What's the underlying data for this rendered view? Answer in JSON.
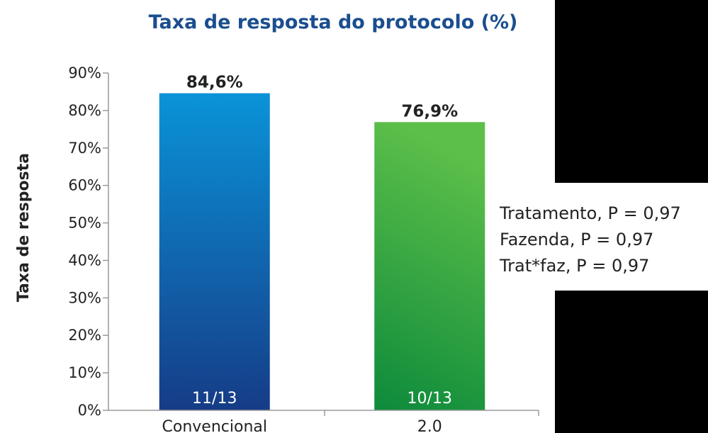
{
  "chart_data": {
    "type": "bar",
    "title": "Taxa de resposta do protocolo (%)",
    "ylabel": "Taxa de resposta",
    "xlabel": "",
    "ylim": [
      0,
      90
    ],
    "yticks": [
      "0%",
      "10%",
      "20%",
      "30%",
      "40%",
      "50%",
      "60%",
      "70%",
      "80%",
      "90%"
    ],
    "categories": [
      "Convencional",
      "2.0"
    ],
    "values": [
      84.6,
      76.9
    ],
    "value_labels": [
      "84,6%",
      "76,9%"
    ],
    "bar_inner_labels": [
      "11/13",
      "10/13"
    ],
    "colors": [
      "#1976c9",
      "#3aa845"
    ],
    "grid": false
  },
  "stats": [
    "Tratamento, P = 0,97",
    "Fazenda, P = 0,97",
    "Trat*faz, P = 0,97"
  ]
}
